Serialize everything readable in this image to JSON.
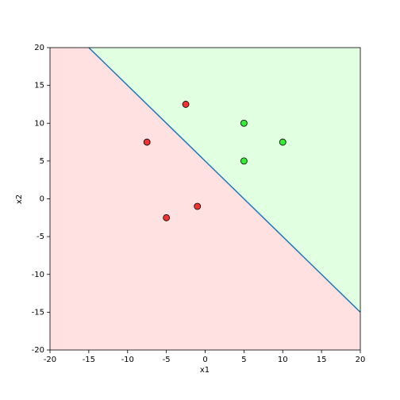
{
  "chart_data": {
    "type": "scatter",
    "x_label": "x1",
    "y_label": "x2",
    "xlim": [
      -20,
      20
    ],
    "ylim": [
      -20,
      20
    ],
    "xticks": [
      -20,
      -15,
      -10,
      -5,
      0,
      5,
      10,
      15,
      20
    ],
    "yticks": [
      -20,
      -15,
      -10,
      -5,
      0,
      5,
      10,
      15,
      20
    ],
    "regions": [
      {
        "color": "#ffe1e1"
      },
      {
        "color": "#e1ffe1"
      }
    ],
    "boundary": {
      "x": [
        -15,
        20
      ],
      "values": [
        20,
        -15
      ],
      "color": "#1f77b4"
    },
    "series": [
      {
        "color": "#ee3333",
        "x": [
          -2.5,
          -7.5,
          -1,
          -5
        ],
        "values": [
          12.5,
          7.5,
          -1,
          -2.5
        ]
      },
      {
        "color": "#33ee33",
        "x": [
          5,
          5,
          10
        ],
        "values": [
          10,
          5,
          7.5
        ]
      }
    ]
  }
}
